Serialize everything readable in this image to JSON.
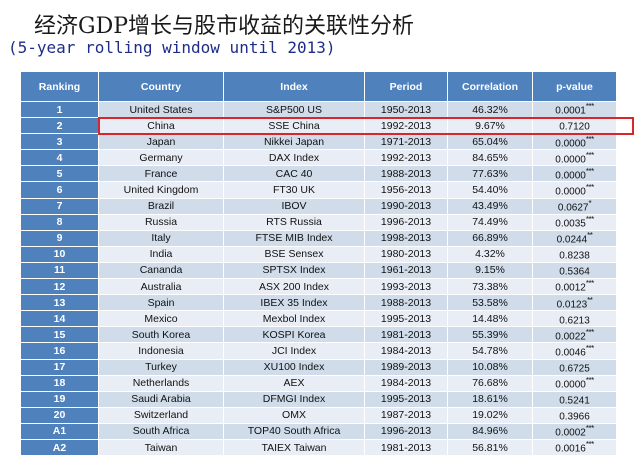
{
  "title": "经济GDP增长与股市收益的关联性分析",
  "subtitle": "(5-year rolling window until 2013)",
  "table": {
    "headers": [
      "Ranking",
      "Country",
      "Index",
      "Period",
      "Correlation",
      "p-value"
    ],
    "rows": [
      {
        "rank": "1",
        "country": "United States",
        "index": "S&P500 US",
        "period": "1950-2013",
        "corr": "46.32%",
        "p": "0.0001",
        "stars": "***"
      },
      {
        "rank": "2",
        "country": "China",
        "index": "SSE China",
        "period": "1992-2013",
        "corr": "9.67%",
        "p": "0.7120",
        "stars": ""
      },
      {
        "rank": "3",
        "country": "Japan",
        "index": "Nikkei Japan",
        "period": "1971-2013",
        "corr": "65.04%",
        "p": "0.0000",
        "stars": "***"
      },
      {
        "rank": "4",
        "country": "Germany",
        "index": "DAX Index",
        "period": "1992-2013",
        "corr": "84.65%",
        "p": "0.0000",
        "stars": "***"
      },
      {
        "rank": "5",
        "country": "France",
        "index": "CAC 40",
        "period": "1988-2013",
        "corr": "77.63%",
        "p": "0.0000",
        "stars": "***"
      },
      {
        "rank": "6",
        "country": "United Kingdom",
        "index": "FT30 UK",
        "period": "1956-2013",
        "corr": "54.40%",
        "p": "0.0000",
        "stars": "***"
      },
      {
        "rank": "7",
        "country": "Brazil",
        "index": "IBOV",
        "period": "1990-2013",
        "corr": "43.49%",
        "p": "0.0627",
        "stars": "*"
      },
      {
        "rank": "8",
        "country": "Russia",
        "index": "RTS Russia",
        "period": "1996-2013",
        "corr": "74.49%",
        "p": "0.0035",
        "stars": "***"
      },
      {
        "rank": "9",
        "country": "Italy",
        "index": "FTSE MIB Index",
        "period": "1998-2013",
        "corr": "66.89%",
        "p": "0.0244",
        "stars": "**"
      },
      {
        "rank": "10",
        "country": "India",
        "index": "BSE Sensex",
        "period": "1980-2013",
        "corr": "4.32%",
        "p": "0.8238",
        "stars": ""
      },
      {
        "rank": "11",
        "country": "Cananda",
        "index": "SPTSX Index",
        "period": "1961-2013",
        "corr": "9.15%",
        "p": "0.5364",
        "stars": ""
      },
      {
        "rank": "12",
        "country": "Australia",
        "index": "ASX 200 Index",
        "period": "1993-2013",
        "corr": "73.38%",
        "p": "0.0012",
        "stars": "***"
      },
      {
        "rank": "13",
        "country": "Spain",
        "index": "IBEX 35 Index",
        "period": "1988-2013",
        "corr": "53.58%",
        "p": "0.0123",
        "stars": "**"
      },
      {
        "rank": "14",
        "country": "Mexico",
        "index": "Mexbol Index",
        "period": "1995-2013",
        "corr": "14.48%",
        "p": "0.6213",
        "stars": ""
      },
      {
        "rank": "15",
        "country": "South Korea",
        "index": "KOSPI Korea",
        "period": "1981-2013",
        "corr": "55.39%",
        "p": "0.0022",
        "stars": "***"
      },
      {
        "rank": "16",
        "country": "Indonesia",
        "index": "JCI Index",
        "period": "1984-2013",
        "corr": "54.78%",
        "p": "0.0046",
        "stars": "***"
      },
      {
        "rank": "17",
        "country": "Turkey",
        "index": "XU100 Index",
        "period": "1989-2013",
        "corr": "10.08%",
        "p": "0.6725",
        "stars": ""
      },
      {
        "rank": "18",
        "country": "Netherlands",
        "index": "AEX",
        "period": "1984-2013",
        "corr": "76.68%",
        "p": "0.0000",
        "stars": "***"
      },
      {
        "rank": "19",
        "country": "Saudi Arabia",
        "index": "DFMGI Index",
        "period": "1995-2013",
        "corr": "18.61%",
        "p": "0.5241",
        "stars": ""
      },
      {
        "rank": "20",
        "country": "Switzerland",
        "index": "OMX",
        "period": "1987-2013",
        "corr": "19.02%",
        "p": "0.3966",
        "stars": ""
      },
      {
        "rank": "A1",
        "country": "South Africa",
        "index": "TOP40 South Africa",
        "period": "1996-2013",
        "corr": "84.96%",
        "p": "0.0002",
        "stars": "***"
      },
      {
        "rank": "A2",
        "country": "Taiwan",
        "index": "TAIEX Taiwan",
        "period": "1981-2013",
        "corr": "56.81%",
        "p": "0.0016",
        "stars": "***"
      }
    ]
  },
  "highlight_color": "#d9262b",
  "header_color": "#4f81bd"
}
